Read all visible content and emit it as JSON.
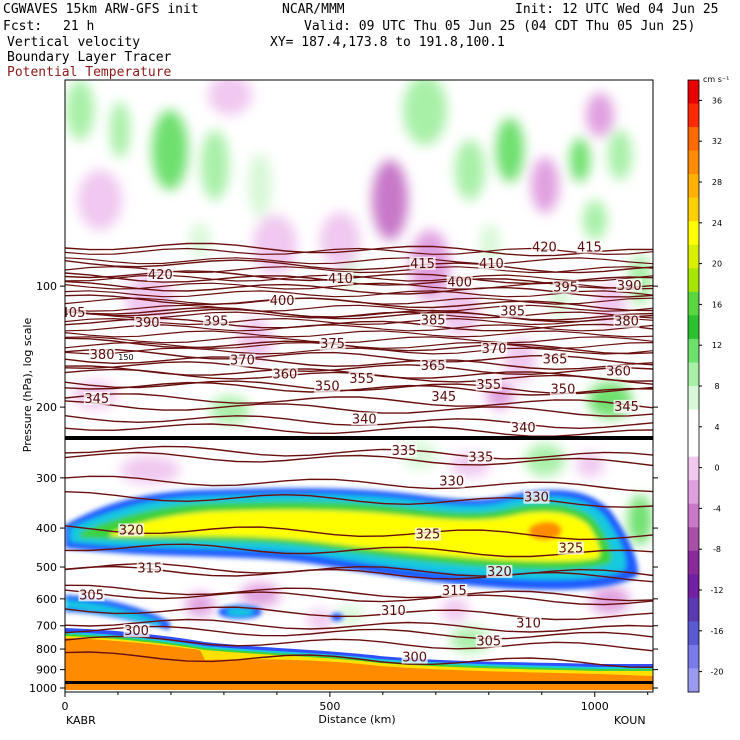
{
  "header": {
    "model": "CGWAVES 15km ARW-GFS init",
    "org": "NCAR/MMM",
    "init": "Init: 12 UTC Wed 04 Jun 25",
    "fcst_label": "Fcst:",
    "fcst_value": "21 h",
    "valid": "Valid: 09 UTC Thu 05 Jun 25 (04 CDT Thu 05 Jun 25)",
    "xy": "XY= 187.4,173.8 to 191.8,100.1",
    "fields": [
      "Vertical velocity",
      "Boundary Layer Tracer",
      "Potential Temperature"
    ],
    "field_colors": [
      "#000000",
      "#000000",
      "#8b1a1a"
    ]
  },
  "chart_data": {
    "type": "heatmap",
    "title": "Vertical velocity",
    "xlabel": "Distance (km)",
    "ylabel": "Pressure (hPa), log scale",
    "xlim": [
      0,
      1110
    ],
    "ylim": [
      1000,
      30
    ],
    "yscale": "log",
    "x_ticks": [
      0,
      500,
      1000
    ],
    "x_tick_labels": [
      "0",
      "500",
      "1000"
    ],
    "y_ticks": [
      100,
      200,
      300,
      400,
      500,
      600,
      700,
      800,
      900,
      1000
    ],
    "y_tick_labels": [
      "100",
      "200",
      "300",
      "400",
      "500",
      "600",
      "700",
      "800",
      "900",
      "1000"
    ],
    "x_endpoints": [
      "KABR",
      "KOUN"
    ],
    "colorbar": {
      "units": "cm s⁻¹",
      "tick_labels": [
        "36",
        "32",
        "28",
        "24",
        "20",
        "16",
        "12",
        "8",
        "4",
        "0",
        "-4",
        "-8",
        "-12",
        "-16",
        "-20"
      ],
      "tick_values": [
        36,
        32,
        28,
        24,
        20,
        16,
        12,
        8,
        4,
        0,
        -4,
        -8,
        -12,
        -16,
        -20
      ],
      "colors": [
        "#e60000",
        "#ff2a00",
        "#ff6a00",
        "#ff8c00",
        "#ffb000",
        "#ffd000",
        "#ffff00",
        "#d8f000",
        "#a6e600",
        "#5ad640",
        "#2ec030",
        "#6ee06e",
        "#a8f0a8",
        "#d8f8d8",
        "#ffffff",
        "#ffffff",
        "#f0c8f0",
        "#e0a0e0",
        "#c878c8",
        "#a850a8",
        "#8a2a9a",
        "#7020a0",
        "#5a3ab0",
        "#5a5ad0",
        "#7a7ae8",
        "#9a9af0"
      ]
    },
    "series": [
      {
        "name": "Potential Temperature",
        "type": "contour",
        "color": "#6a0f0f"
      },
      {
        "name": "Boundary Layer Tracer",
        "type": "filled"
      },
      {
        "name": "Vertical velocity",
        "type": "filled"
      }
    ],
    "theta_labels": [
      {
        "x": 15,
        "p": 118,
        "text": "405"
      },
      {
        "x": 180,
        "p": 95,
        "text": "420"
      },
      {
        "x": 155,
        "p": 125,
        "text": "390"
      },
      {
        "x": 285,
        "p": 124,
        "text": "395"
      },
      {
        "x": 410,
        "p": 110,
        "text": "400"
      },
      {
        "x": 520,
        "p": 97,
        "text": "410"
      },
      {
        "x": 675,
        "p": 89,
        "text": "415"
      },
      {
        "x": 905,
        "p": 81,
        "text": "420"
      },
      {
        "x": 990,
        "p": 81,
        "text": "415"
      },
      {
        "x": 805,
        "p": 89,
        "text": "410"
      },
      {
        "x": 745,
        "p": 99,
        "text": "400"
      },
      {
        "x": 945,
        "p": 102,
        "text": "395"
      },
      {
        "x": 1065,
        "p": 101,
        "text": "390"
      },
      {
        "x": 845,
        "p": 117,
        "text": "385"
      },
      {
        "x": 695,
        "p": 123,
        "text": "385"
      },
      {
        "x": 1060,
        "p": 124,
        "text": "380"
      },
      {
        "x": 70,
        "p": 150,
        "text": "380"
      },
      {
        "x": 505,
        "p": 141,
        "text": "375"
      },
      {
        "x": 810,
        "p": 145,
        "text": "370"
      },
      {
        "x": 335,
        "p": 155,
        "text": "370"
      },
      {
        "x": 695,
        "p": 160,
        "text": "365"
      },
      {
        "x": 925,
        "p": 154,
        "text": "365"
      },
      {
        "x": 415,
        "p": 168,
        "text": "360"
      },
      {
        "x": 1045,
        "p": 165,
        "text": "360"
      },
      {
        "x": 560,
        "p": 172,
        "text": "355"
      },
      {
        "x": 800,
        "p": 178,
        "text": "355"
      },
      {
        "x": 495,
        "p": 180,
        "text": "350"
      },
      {
        "x": 940,
        "p": 183,
        "text": "350"
      },
      {
        "x": 60,
        "p": 193,
        "text": "345"
      },
      {
        "x": 715,
        "p": 191,
        "text": "345"
      },
      {
        "x": 1060,
        "p": 202,
        "text": "345"
      },
      {
        "x": 565,
        "p": 217,
        "text": "340"
      },
      {
        "x": 865,
        "p": 228,
        "text": "340"
      },
      {
        "x": 640,
        "p": 260,
        "text": "335"
      },
      {
        "x": 785,
        "p": 270,
        "text": "335"
      },
      {
        "x": 730,
        "p": 310,
        "text": "330"
      },
      {
        "x": 890,
        "p": 340,
        "text": "330"
      },
      {
        "x": 125,
        "p": 410,
        "text": "320"
      },
      {
        "x": 685,
        "p": 420,
        "text": "325"
      },
      {
        "x": 955,
        "p": 455,
        "text": "325"
      },
      {
        "x": 160,
        "p": 510,
        "text": "315"
      },
      {
        "x": 820,
        "p": 520,
        "text": "320"
      },
      {
        "x": 735,
        "p": 580,
        "text": "315"
      },
      {
        "x": 50,
        "p": 595,
        "text": "305"
      },
      {
        "x": 620,
        "p": 650,
        "text": "310"
      },
      {
        "x": 875,
        "p": 700,
        "text": "310"
      },
      {
        "x": 135,
        "p": 730,
        "text": "300"
      },
      {
        "x": 800,
        "p": 775,
        "text": "305"
      },
      {
        "x": 660,
        "p": 850,
        "text": "300"
      }
    ],
    "tropopause_label": {
      "x": 115,
      "p": 150,
      "text": "150"
    }
  }
}
